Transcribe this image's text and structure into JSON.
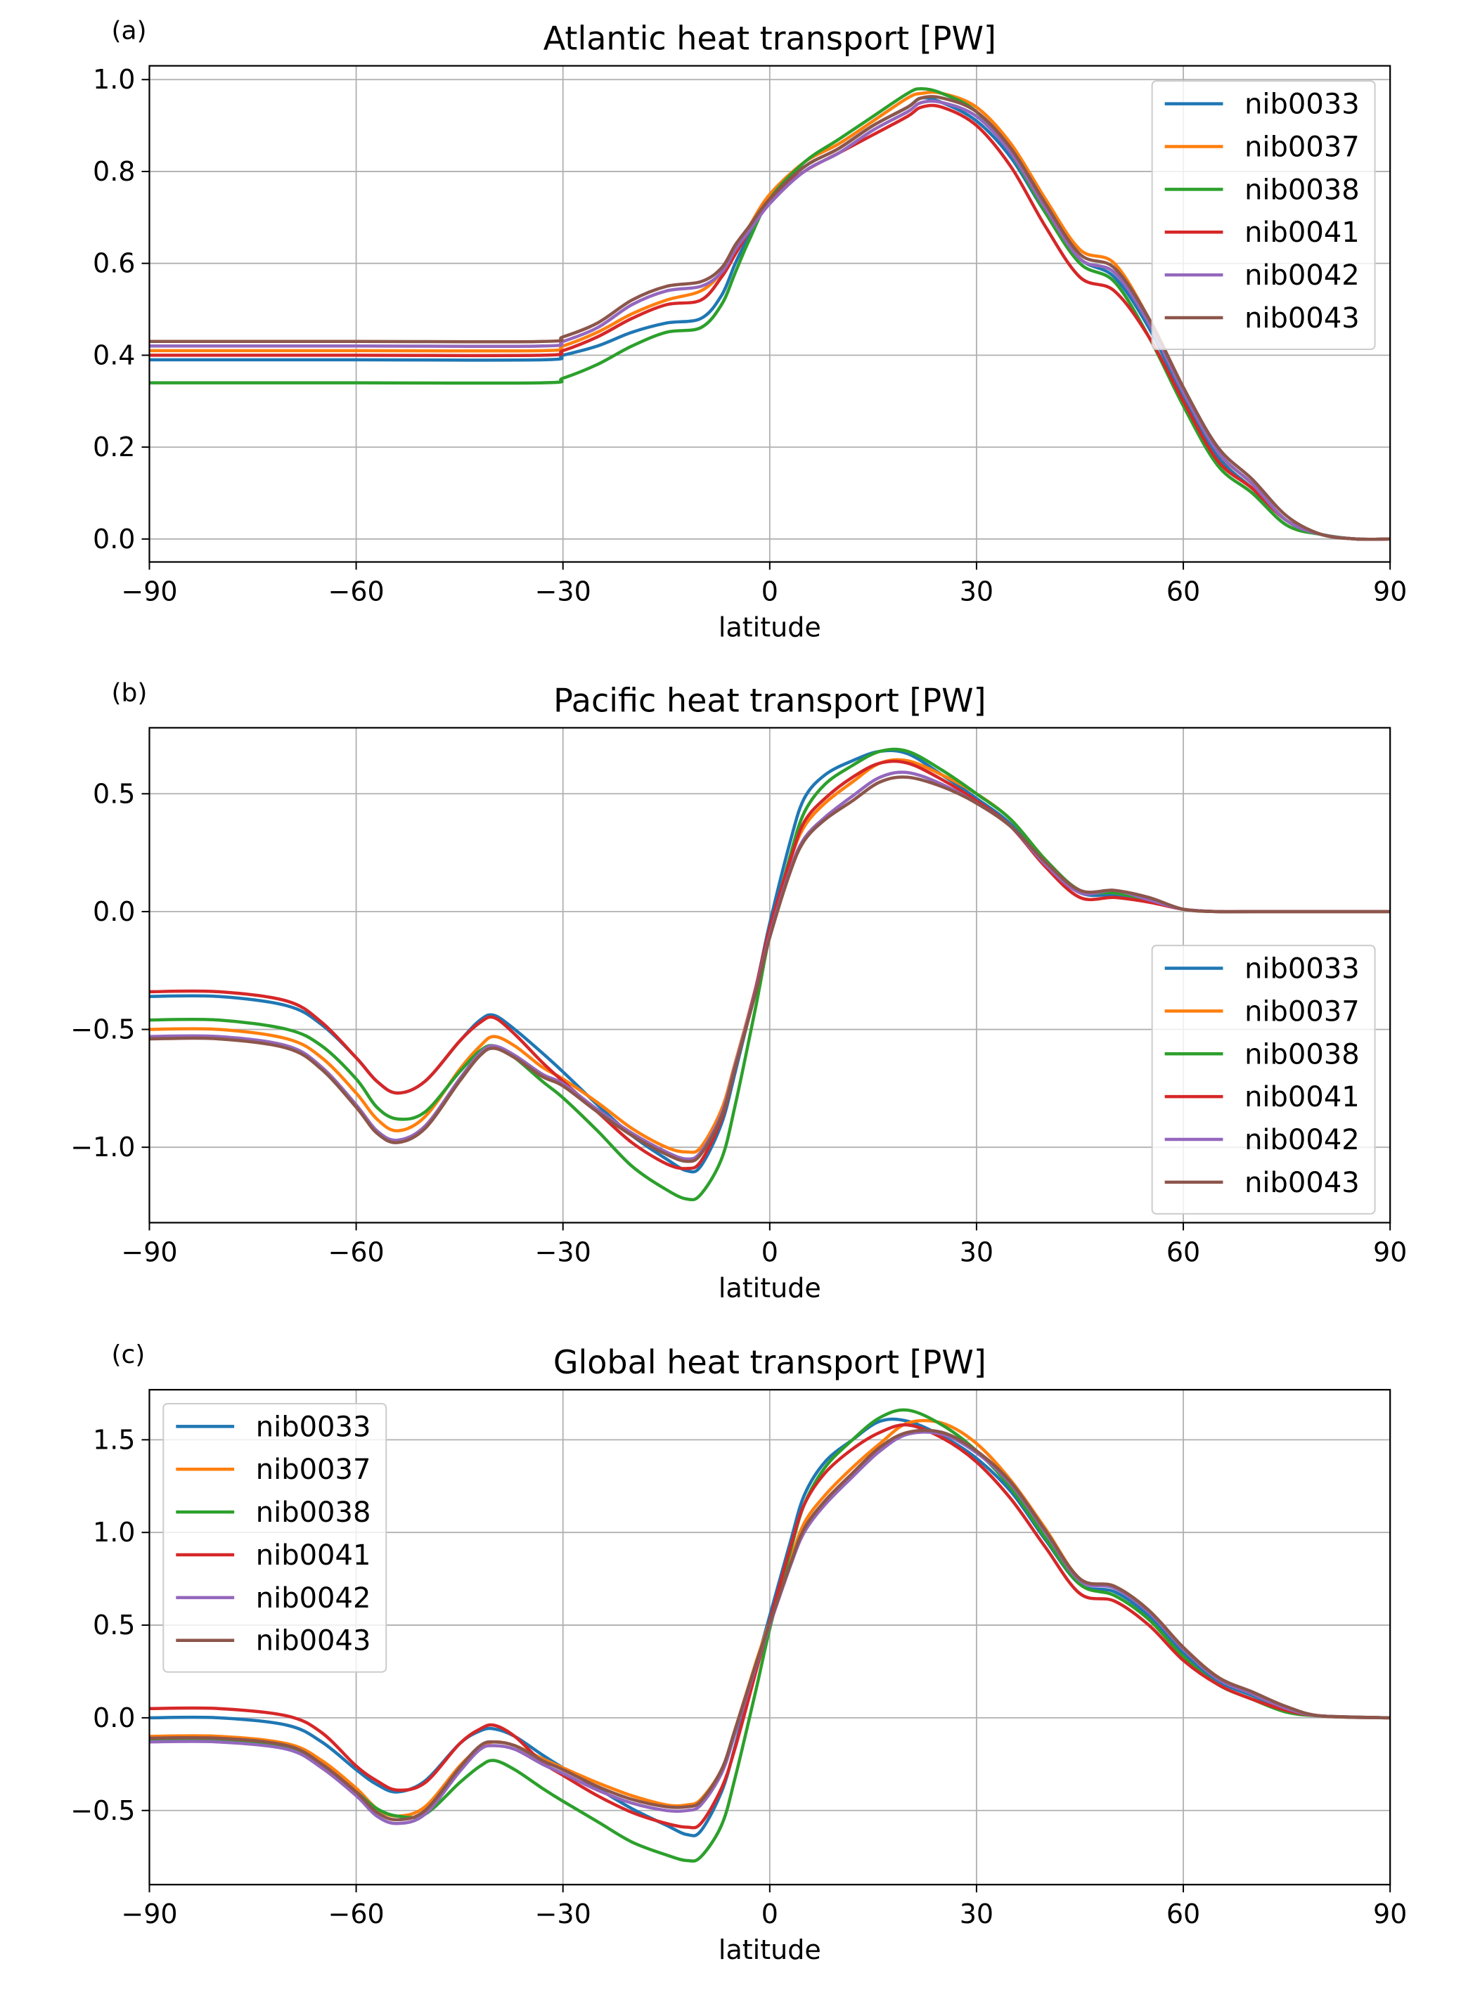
{
  "figure": {
    "layout": "3 panels stacked vertically"
  },
  "chart_data": [
    {
      "type": "line",
      "panel_label": "(a)",
      "title": "Atlantic heat transport [PW]",
      "xlabel": "latitude",
      "ylabel": "",
      "xlim": [
        -90,
        90
      ],
      "ylim": [
        -0.05,
        1.03
      ],
      "xticks": [
        -90,
        -60,
        -30,
        0,
        30,
        60,
        90
      ],
      "xtick_labels": [
        "−90",
        "−60",
        "−30",
        "0",
        "30",
        "60",
        "90"
      ],
      "yticks": [
        0.0,
        0.2,
        0.4,
        0.6,
        0.8,
        1.0
      ],
      "ytick_labels": [
        "0.0",
        "0.2",
        "0.4",
        "0.6",
        "0.8",
        "1.0"
      ],
      "grid": true,
      "legend_position": "top-right",
      "x": [
        -90,
        -60,
        -33,
        -30,
        -25,
        -20,
        -15,
        -10,
        -7,
        -5,
        -3,
        0,
        5,
        10,
        15,
        20,
        22,
        25,
        30,
        35,
        40,
        45,
        50,
        55,
        60,
        65,
        70,
        75,
        80,
        85,
        90
      ],
      "series": [
        {
          "name": "nib0033",
          "color": "#1f77b4",
          "values": [
            0.39,
            0.39,
            0.39,
            0.4,
            0.42,
            0.45,
            0.47,
            0.48,
            0.53,
            0.6,
            0.66,
            0.74,
            0.81,
            0.85,
            0.9,
            0.94,
            0.96,
            0.95,
            0.91,
            0.83,
            0.71,
            0.61,
            0.57,
            0.46,
            0.31,
            0.18,
            0.11,
            0.04,
            0.01,
            0.0,
            0.0
          ]
        },
        {
          "name": "nib0037",
          "color": "#ff7f0e",
          "values": [
            0.41,
            0.41,
            0.41,
            0.42,
            0.45,
            0.49,
            0.52,
            0.54,
            0.58,
            0.63,
            0.68,
            0.75,
            0.82,
            0.86,
            0.91,
            0.96,
            0.97,
            0.97,
            0.94,
            0.86,
            0.74,
            0.63,
            0.6,
            0.48,
            0.33,
            0.19,
            0.12,
            0.04,
            0.01,
            0.0,
            0.0
          ]
        },
        {
          "name": "nib0038",
          "color": "#2ca02c",
          "values": [
            0.34,
            0.34,
            0.34,
            0.35,
            0.38,
            0.42,
            0.45,
            0.46,
            0.51,
            0.58,
            0.65,
            0.74,
            0.82,
            0.87,
            0.92,
            0.97,
            0.98,
            0.97,
            0.93,
            0.84,
            0.71,
            0.6,
            0.56,
            0.44,
            0.29,
            0.16,
            0.1,
            0.03,
            0.01,
            0.0,
            0.0
          ]
        },
        {
          "name": "nib0041",
          "color": "#d62728",
          "values": [
            0.4,
            0.4,
            0.4,
            0.41,
            0.44,
            0.48,
            0.51,
            0.52,
            0.57,
            0.62,
            0.67,
            0.74,
            0.8,
            0.84,
            0.88,
            0.92,
            0.94,
            0.94,
            0.9,
            0.81,
            0.68,
            0.57,
            0.54,
            0.44,
            0.3,
            0.17,
            0.11,
            0.04,
            0.01,
            0.0,
            0.0
          ]
        },
        {
          "name": "nib0042",
          "color": "#9467bd",
          "values": [
            0.42,
            0.42,
            0.42,
            0.43,
            0.46,
            0.51,
            0.54,
            0.55,
            0.58,
            0.63,
            0.67,
            0.73,
            0.8,
            0.84,
            0.89,
            0.93,
            0.95,
            0.95,
            0.92,
            0.84,
            0.72,
            0.61,
            0.58,
            0.47,
            0.32,
            0.19,
            0.12,
            0.04,
            0.01,
            0.0,
            0.0
          ]
        },
        {
          "name": "nib0043",
          "color": "#8c564b",
          "values": [
            0.43,
            0.43,
            0.43,
            0.44,
            0.47,
            0.52,
            0.55,
            0.56,
            0.59,
            0.64,
            0.68,
            0.74,
            0.81,
            0.85,
            0.9,
            0.94,
            0.96,
            0.96,
            0.93,
            0.85,
            0.73,
            0.62,
            0.59,
            0.48,
            0.33,
            0.2,
            0.13,
            0.05,
            0.01,
            0.0,
            0.0
          ]
        }
      ]
    },
    {
      "type": "line",
      "panel_label": "(b)",
      "title": "Pacific heat transport [PW]",
      "xlabel": "latitude",
      "ylabel": "",
      "xlim": [
        -90,
        90
      ],
      "ylim": [
        -1.32,
        0.78
      ],
      "xticks": [
        -90,
        -60,
        -30,
        0,
        30,
        60,
        90
      ],
      "xtick_labels": [
        "−90",
        "−60",
        "−30",
        "0",
        "30",
        "60",
        "90"
      ],
      "yticks": [
        -1.0,
        -0.5,
        0.0,
        0.5
      ],
      "ytick_labels": [
        "−1.0",
        "−0.5",
        "0.0",
        "0.5"
      ],
      "grid": true,
      "legend_position": "center-right",
      "x": [
        -90,
        -80,
        -70,
        -65,
        -60,
        -57,
        -54,
        -50,
        -45,
        -42,
        -40,
        -37,
        -33,
        -30,
        -25,
        -20,
        -15,
        -12,
        -10,
        -7,
        -5,
        -2,
        0,
        3,
        5,
        8,
        12,
        16,
        20,
        25,
        30,
        35,
        40,
        45,
        50,
        55,
        60,
        65,
        70,
        80,
        90
      ],
      "series": [
        {
          "name": "nib0033",
          "color": "#1f77b4",
          "values": [
            -0.36,
            -0.36,
            -0.4,
            -0.48,
            -0.62,
            -0.72,
            -0.77,
            -0.72,
            -0.55,
            -0.46,
            -0.44,
            -0.5,
            -0.6,
            -0.68,
            -0.82,
            -0.95,
            -1.05,
            -1.1,
            -1.08,
            -0.9,
            -0.68,
            -0.32,
            -0.05,
            0.3,
            0.48,
            0.58,
            0.64,
            0.68,
            0.67,
            0.58,
            0.48,
            0.37,
            0.2,
            0.08,
            0.07,
            0.05,
            0.01,
            0.0,
            0.0,
            0.0,
            0.0
          ]
        },
        {
          "name": "nib0037",
          "color": "#ff7f0e",
          "values": [
            -0.5,
            -0.5,
            -0.54,
            -0.62,
            -0.77,
            -0.88,
            -0.93,
            -0.87,
            -0.67,
            -0.57,
            -0.53,
            -0.57,
            -0.66,
            -0.71,
            -0.81,
            -0.92,
            -1.0,
            -1.02,
            -1.0,
            -0.84,
            -0.64,
            -0.32,
            -0.08,
            0.22,
            0.36,
            0.46,
            0.55,
            0.63,
            0.64,
            0.58,
            0.5,
            0.39,
            0.22,
            0.09,
            0.08,
            0.05,
            0.01,
            0.0,
            0.0,
            0.0,
            0.0
          ]
        },
        {
          "name": "nib0038",
          "color": "#2ca02c",
          "values": [
            -0.46,
            -0.46,
            -0.5,
            -0.57,
            -0.71,
            -0.83,
            -0.88,
            -0.85,
            -0.68,
            -0.59,
            -0.57,
            -0.62,
            -0.72,
            -0.79,
            -0.93,
            -1.08,
            -1.18,
            -1.22,
            -1.2,
            -1.05,
            -0.82,
            -0.4,
            -0.1,
            0.24,
            0.42,
            0.54,
            0.62,
            0.68,
            0.68,
            0.6,
            0.5,
            0.39,
            0.22,
            0.09,
            0.08,
            0.05,
            0.01,
            0.0,
            0.0,
            0.0,
            0.0
          ]
        },
        {
          "name": "nib0041",
          "color": "#d62728",
          "values": [
            -0.34,
            -0.34,
            -0.38,
            -0.47,
            -0.62,
            -0.72,
            -0.77,
            -0.72,
            -0.55,
            -0.47,
            -0.45,
            -0.52,
            -0.64,
            -0.72,
            -0.85,
            -0.98,
            -1.07,
            -1.09,
            -1.06,
            -0.88,
            -0.66,
            -0.32,
            -0.07,
            0.22,
            0.38,
            0.48,
            0.57,
            0.63,
            0.63,
            0.56,
            0.47,
            0.36,
            0.19,
            0.06,
            0.06,
            0.04,
            0.01,
            0.0,
            0.0,
            0.0,
            0.0
          ]
        },
        {
          "name": "nib0042",
          "color": "#9467bd",
          "values": [
            -0.53,
            -0.53,
            -0.57,
            -0.66,
            -0.82,
            -0.93,
            -0.97,
            -0.91,
            -0.71,
            -0.6,
            -0.57,
            -0.61,
            -0.69,
            -0.73,
            -0.84,
            -0.94,
            -1.02,
            -1.05,
            -1.02,
            -0.86,
            -0.65,
            -0.33,
            -0.1,
            0.18,
            0.31,
            0.4,
            0.49,
            0.57,
            0.59,
            0.54,
            0.46,
            0.36,
            0.2,
            0.08,
            0.09,
            0.05,
            0.01,
            0.0,
            0.0,
            0.0,
            0.0
          ]
        },
        {
          "name": "nib0043",
          "color": "#8c564b",
          "values": [
            -0.54,
            -0.54,
            -0.58,
            -0.67,
            -0.83,
            -0.94,
            -0.98,
            -0.92,
            -0.72,
            -0.61,
            -0.58,
            -0.62,
            -0.7,
            -0.74,
            -0.85,
            -0.95,
            -1.03,
            -1.06,
            -1.03,
            -0.87,
            -0.66,
            -0.34,
            -0.11,
            0.17,
            0.3,
            0.39,
            0.47,
            0.55,
            0.57,
            0.53,
            0.46,
            0.36,
            0.21,
            0.09,
            0.09,
            0.06,
            0.01,
            0.0,
            0.0,
            0.0,
            0.0
          ]
        }
      ]
    },
    {
      "type": "line",
      "panel_label": "(c)",
      "title": "Global heat transport [PW]",
      "xlabel": "latitude",
      "ylabel": "",
      "xlim": [
        -90,
        90
      ],
      "ylim": [
        -0.9,
        1.77
      ],
      "xticks": [
        -90,
        -60,
        -30,
        0,
        30,
        60,
        90
      ],
      "xtick_labels": [
        "−90",
        "−60",
        "−30",
        "0",
        "30",
        "60",
        "90"
      ],
      "yticks": [
        -0.5,
        0.0,
        0.5,
        1.0,
        1.5
      ],
      "ytick_labels": [
        "−0.5",
        "0.0",
        "0.5",
        "1.0",
        "1.5"
      ],
      "grid": true,
      "legend_position": "top-left",
      "x": [
        -90,
        -80,
        -70,
        -65,
        -60,
        -57,
        -54,
        -50,
        -45,
        -42,
        -40,
        -37,
        -33,
        -30,
        -25,
        -20,
        -15,
        -12,
        -10,
        -7,
        -5,
        -2,
        0,
        3,
        5,
        8,
        12,
        16,
        20,
        25,
        30,
        35,
        40,
        45,
        50,
        55,
        60,
        65,
        70,
        75,
        80,
        90
      ],
      "series": [
        {
          "name": "nib0033",
          "color": "#1f77b4",
          "values": [
            0.0,
            0.0,
            -0.04,
            -0.13,
            -0.28,
            -0.36,
            -0.4,
            -0.34,
            -0.14,
            -0.07,
            -0.06,
            -0.1,
            -0.2,
            -0.27,
            -0.38,
            -0.49,
            -0.58,
            -0.63,
            -0.61,
            -0.4,
            -0.15,
            0.28,
            0.55,
            0.95,
            1.2,
            1.38,
            1.5,
            1.6,
            1.6,
            1.52,
            1.4,
            1.22,
            0.96,
            0.72,
            0.68,
            0.55,
            0.35,
            0.2,
            0.12,
            0.05,
            0.01,
            0.0
          ]
        },
        {
          "name": "nib0037",
          "color": "#ff7f0e",
          "values": [
            -0.1,
            -0.1,
            -0.14,
            -0.23,
            -0.38,
            -0.49,
            -0.53,
            -0.48,
            -0.26,
            -0.16,
            -0.13,
            -0.15,
            -0.22,
            -0.27,
            -0.35,
            -0.42,
            -0.47,
            -0.47,
            -0.44,
            -0.28,
            -0.06,
            0.3,
            0.52,
            0.85,
            1.05,
            1.2,
            1.35,
            1.48,
            1.59,
            1.59,
            1.48,
            1.28,
            1.02,
            0.75,
            0.71,
            0.58,
            0.38,
            0.22,
            0.13,
            0.05,
            0.01,
            0.0
          ]
        },
        {
          "name": "nib0038",
          "color": "#2ca02c",
          "values": [
            -0.12,
            -0.12,
            -0.16,
            -0.26,
            -0.4,
            -0.49,
            -0.53,
            -0.52,
            -0.35,
            -0.26,
            -0.23,
            -0.28,
            -0.38,
            -0.45,
            -0.56,
            -0.67,
            -0.74,
            -0.77,
            -0.75,
            -0.58,
            -0.32,
            0.15,
            0.48,
            0.9,
            1.15,
            1.35,
            1.5,
            1.62,
            1.66,
            1.58,
            1.44,
            1.24,
            0.97,
            0.72,
            0.66,
            0.53,
            0.33,
            0.18,
            0.1,
            0.03,
            0.01,
            0.0
          ]
        },
        {
          "name": "nib0041",
          "color": "#d62728",
          "values": [
            0.05,
            0.05,
            0.01,
            -0.08,
            -0.26,
            -0.34,
            -0.39,
            -0.35,
            -0.14,
            -0.06,
            -0.04,
            -0.1,
            -0.24,
            -0.31,
            -0.42,
            -0.51,
            -0.57,
            -0.59,
            -0.57,
            -0.38,
            -0.16,
            0.25,
            0.52,
            0.92,
            1.15,
            1.32,
            1.45,
            1.54,
            1.58,
            1.51,
            1.38,
            1.18,
            0.92,
            0.67,
            0.63,
            0.5,
            0.31,
            0.18,
            0.1,
            0.04,
            0.01,
            0.0
          ]
        },
        {
          "name": "nib0042",
          "color": "#9467bd",
          "values": [
            -0.13,
            -0.13,
            -0.17,
            -0.27,
            -0.42,
            -0.53,
            -0.57,
            -0.52,
            -0.29,
            -0.17,
            -0.15,
            -0.17,
            -0.25,
            -0.3,
            -0.39,
            -0.46,
            -0.5,
            -0.5,
            -0.47,
            -0.3,
            -0.08,
            0.28,
            0.5,
            0.82,
            1.0,
            1.15,
            1.3,
            1.44,
            1.53,
            1.53,
            1.43,
            1.26,
            1.0,
            0.74,
            0.7,
            0.57,
            0.37,
            0.21,
            0.13,
            0.05,
            0.01,
            0.0
          ]
        },
        {
          "name": "nib0043",
          "color": "#8c564b",
          "values": [
            -0.11,
            -0.11,
            -0.15,
            -0.25,
            -0.4,
            -0.51,
            -0.55,
            -0.5,
            -0.27,
            -0.15,
            -0.13,
            -0.15,
            -0.23,
            -0.28,
            -0.37,
            -0.44,
            -0.48,
            -0.48,
            -0.45,
            -0.28,
            -0.06,
            0.29,
            0.51,
            0.83,
            1.02,
            1.17,
            1.32,
            1.46,
            1.54,
            1.54,
            1.44,
            1.27,
            1.01,
            0.75,
            0.71,
            0.58,
            0.38,
            0.22,
            0.14,
            0.06,
            0.01,
            0.0
          ]
        }
      ]
    }
  ]
}
